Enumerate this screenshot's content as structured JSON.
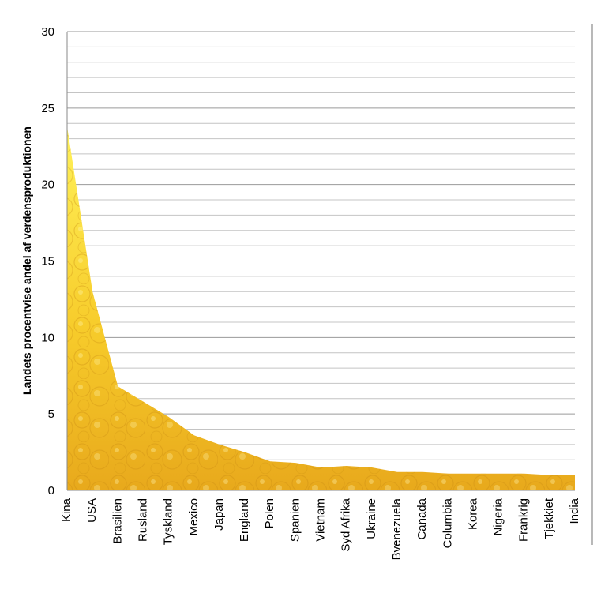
{
  "chart_data": {
    "type": "area",
    "title": "",
    "xlabel": "",
    "ylabel": "Landets procentvise andel af verdensproduktionen",
    "ylim": [
      0,
      30
    ],
    "y_ticks": [
      "0",
      "5",
      "10",
      "15",
      "20",
      "25",
      "30"
    ],
    "grid": true,
    "legend": "none",
    "colors": {
      "area_top": "#FFF25A",
      "area_mid": "#F7CC2B",
      "area_bottom": "#E8A91C"
    },
    "categories": [
      "Kina",
      "USA",
      "Brasilien",
      "Rusland",
      "Tyskland",
      "Mexico",
      "Japan",
      "England",
      "Polen",
      "Spanien",
      "Vietnam",
      "Syd Afrika",
      "Ukraine",
      "Bvenezuela",
      "Canada",
      "Columbia",
      "Korea",
      "Nigeria",
      "Frankrig",
      "Tjekkiet",
      "India"
    ],
    "values": [
      23.8,
      13.0,
      6.8,
      5.8,
      4.8,
      3.6,
      3.0,
      2.5,
      1.9,
      1.8,
      1.5,
      1.6,
      1.5,
      1.2,
      1.2,
      1.1,
      1.1,
      1.1,
      1.1,
      1.0,
      1.0
    ]
  }
}
